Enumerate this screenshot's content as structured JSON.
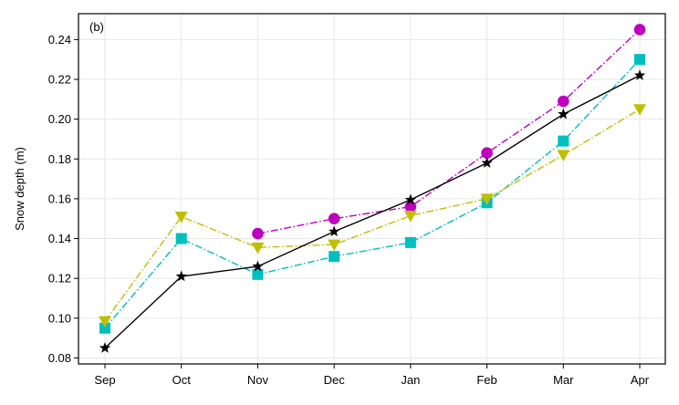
{
  "chart_data": {
    "type": "line",
    "panel_label": "(b)",
    "xlabel": "",
    "ylabel": "Snow depth (m)",
    "categories": [
      "Sep",
      "Oct",
      "Nov",
      "Dec",
      "Jan",
      "Feb",
      "Mar",
      "Apr"
    ],
    "ylim": [
      0.077,
      0.253
    ],
    "yticks": [
      "0.08",
      "0.10",
      "0.12",
      "0.14",
      "0.16",
      "0.18",
      "0.20",
      "0.22",
      "0.24"
    ],
    "grid": true,
    "series": [
      {
        "color": "#bf00bf",
        "marker": "circle",
        "linestyle": "dashdot",
        "values": [
          null,
          null,
          0.1425,
          0.15,
          0.156,
          0.183,
          0.209,
          0.245
        ]
      },
      {
        "color": "#00bfbf",
        "marker": "square",
        "linestyle": "dashdot",
        "values": [
          0.095,
          0.14,
          0.122,
          0.131,
          0.138,
          0.158,
          0.189,
          0.23
        ]
      },
      {
        "color": "#bfbf00",
        "marker": "triangle-down",
        "linestyle": "dashdot",
        "values": [
          0.0985,
          0.151,
          0.1355,
          0.137,
          0.1515,
          0.16,
          0.182,
          0.205
        ]
      },
      {
        "color": "#000000",
        "marker": "star",
        "linestyle": "solid",
        "values": [
          0.085,
          0.121,
          0.126,
          0.1435,
          0.1595,
          0.178,
          0.2025,
          0.222
        ]
      }
    ]
  }
}
